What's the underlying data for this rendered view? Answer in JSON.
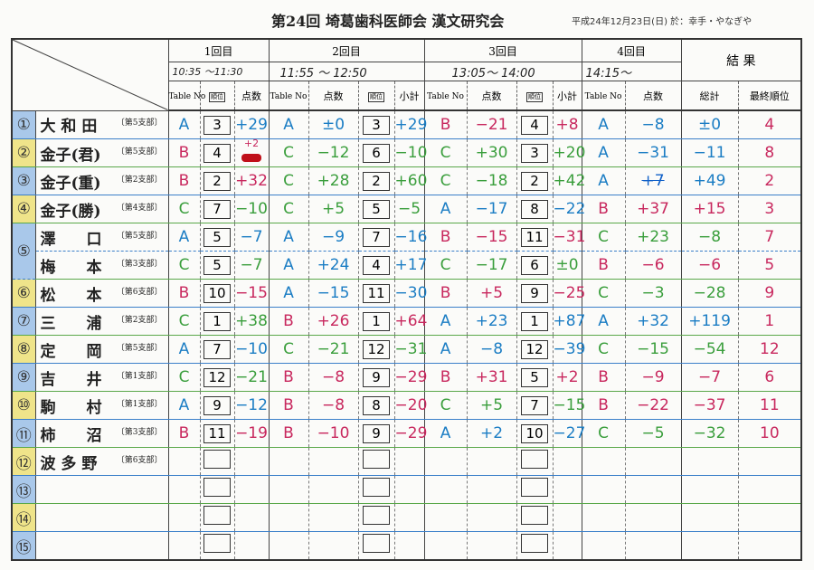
{
  "header": {
    "title": "第24回 埼葛歯科医師会 漢文研究会",
    "date_venue": "平成24年12月23日(日)  於：幸手・やなぎや"
  },
  "columns": {
    "rounds": [
      "1回目",
      "2回目",
      "3回目",
      "4回目"
    ],
    "result": "結 果",
    "times": [
      "10:35 ～11:30",
      "11:55 ～ 12:50",
      "13:05～ 14:00",
      "14:15～"
    ],
    "table_no": "Table No",
    "rank": "順位",
    "score": "点数",
    "subtotal": "小計",
    "total": "総計",
    "final_rank": "最終順位"
  },
  "colors": {
    "A": "#1b7dc4",
    "B": "#c8285e",
    "C": "#3a9e3c",
    "final": "#c8285e",
    "num_blue": "#a9c8ea",
    "num_yellow": "#efe48a"
  },
  "rows": [
    {
      "num": "①",
      "name": "大 和 田",
      "branch": "〔第5支部〕",
      "r1": [
        "A",
        "3",
        "+29"
      ],
      "r2": [
        "A",
        "±0",
        "3",
        "+29"
      ],
      "r3": [
        "B",
        "−21",
        "4",
        "+8"
      ],
      "r4": [
        "A",
        "−8"
      ],
      "total": "±0",
      "final": "4"
    },
    {
      "num": "②",
      "name": "金子(君)",
      "branch": "〔第5支部〕",
      "r1": [
        "B",
        "4",
        "+2"
      ],
      "r2": [
        "C",
        "−12",
        "6",
        "−10"
      ],
      "r3": [
        "C",
        "+30",
        "3",
        "+20"
      ],
      "r4": [
        "A",
        "−31"
      ],
      "total": "−11",
      "final": "8"
    },
    {
      "num": "③",
      "name": "金子(重)",
      "branch": "〔第2支部〕",
      "r1": [
        "B",
        "2",
        "+32"
      ],
      "r2": [
        "C",
        "+28",
        "2",
        "+60"
      ],
      "r3": [
        "C",
        "−18",
        "2",
        "+42"
      ],
      "r4": [
        "A",
        "+7"
      ],
      "total": "+49",
      "final": "2"
    },
    {
      "num": "④",
      "name": "金子(勝)",
      "branch": "〔第4支部〕",
      "r1": [
        "C",
        "7",
        "−10"
      ],
      "r2": [
        "C",
        "+5",
        "5",
        "−5"
      ],
      "r3": [
        "A",
        "−17",
        "8",
        "−22"
      ],
      "r4": [
        "B",
        "+37"
      ],
      "total": "+15",
      "final": "3"
    },
    {
      "num": "⑤",
      "name": "澤　　口",
      "branch": "〔第5支部〕",
      "r1": [
        "A",
        "5",
        "−7"
      ],
      "r2": [
        "A",
        "−9",
        "7",
        "−16"
      ],
      "r3": [
        "B",
        "−15",
        "11",
        "−31"
      ],
      "r4": [
        "C",
        "+23"
      ],
      "total": "−8",
      "final": "7"
    },
    {
      "num": "",
      "name": "梅　　本",
      "branch": "〔第3支部〕",
      "r1": [
        "C",
        "5",
        "−7"
      ],
      "r2": [
        "A",
        "+24",
        "4",
        "+17"
      ],
      "r3": [
        "C",
        "−17",
        "6",
        "±0"
      ],
      "r4": [
        "B",
        "−6"
      ],
      "total": "−6",
      "final": "5"
    },
    {
      "num": "⑥",
      "name": "松　　本",
      "branch": "〔第6支部〕",
      "r1": [
        "B",
        "10",
        "−15"
      ],
      "r2": [
        "A",
        "−15",
        "11",
        "−30"
      ],
      "r3": [
        "B",
        "+5",
        "9",
        "−25"
      ],
      "r4": [
        "C",
        "−3"
      ],
      "total": "−28",
      "final": "9"
    },
    {
      "num": "⑦",
      "name": "三　　浦",
      "branch": "〔第2支部〕",
      "r1": [
        "C",
        "1",
        "+38"
      ],
      "r2": [
        "B",
        "+26",
        "1",
        "+64"
      ],
      "r3": [
        "A",
        "+23",
        "1",
        "+87"
      ],
      "r4": [
        "A",
        "+32"
      ],
      "total": "+119",
      "final": "1"
    },
    {
      "num": "⑧",
      "name": "定　　岡",
      "branch": "〔第5支部〕",
      "r1": [
        "A",
        "7",
        "−10"
      ],
      "r2": [
        "C",
        "−21",
        "12",
        "−31"
      ],
      "r3": [
        "A",
        "−8",
        "12",
        "−39"
      ],
      "r4": [
        "C",
        "−15"
      ],
      "total": "−54",
      "final": "12"
    },
    {
      "num": "⑨",
      "name": "吉　　井",
      "branch": "〔第1支部〕",
      "r1": [
        "C",
        "12",
        "−21"
      ],
      "r2": [
        "B",
        "−8",
        "9",
        "−29"
      ],
      "r3": [
        "B",
        "+31",
        "5",
        "+2"
      ],
      "r4": [
        "B",
        "−9"
      ],
      "total": "−7",
      "final": "6"
    },
    {
      "num": "⑩",
      "name": "駒　　村",
      "branch": "〔第1支部〕",
      "r1": [
        "A",
        "9",
        "−12"
      ],
      "r2": [
        "B",
        "−8",
        "8",
        "−20"
      ],
      "r3": [
        "C",
        "+5",
        "7",
        "−15"
      ],
      "r4": [
        "B",
        "−22"
      ],
      "total": "−37",
      "final": "11"
    },
    {
      "num": "⑪",
      "name": "柿　　沼",
      "branch": "〔第3支部〕",
      "r1": [
        "B",
        "11",
        "−19"
      ],
      "r2": [
        "B",
        "−10",
        "9",
        "−29"
      ],
      "r3": [
        "A",
        "+2",
        "10",
        "−27"
      ],
      "r4": [
        "C",
        "−5"
      ],
      "total": "−32",
      "final": "10"
    },
    {
      "num": "⑫",
      "name": "波 多 野",
      "branch": "〔第6支部〕"
    },
    {
      "num": "⑬",
      "name": "",
      "branch": ""
    },
    {
      "num": "⑭",
      "name": "",
      "branch": ""
    },
    {
      "num": "⑮",
      "name": "",
      "branch": ""
    }
  ]
}
